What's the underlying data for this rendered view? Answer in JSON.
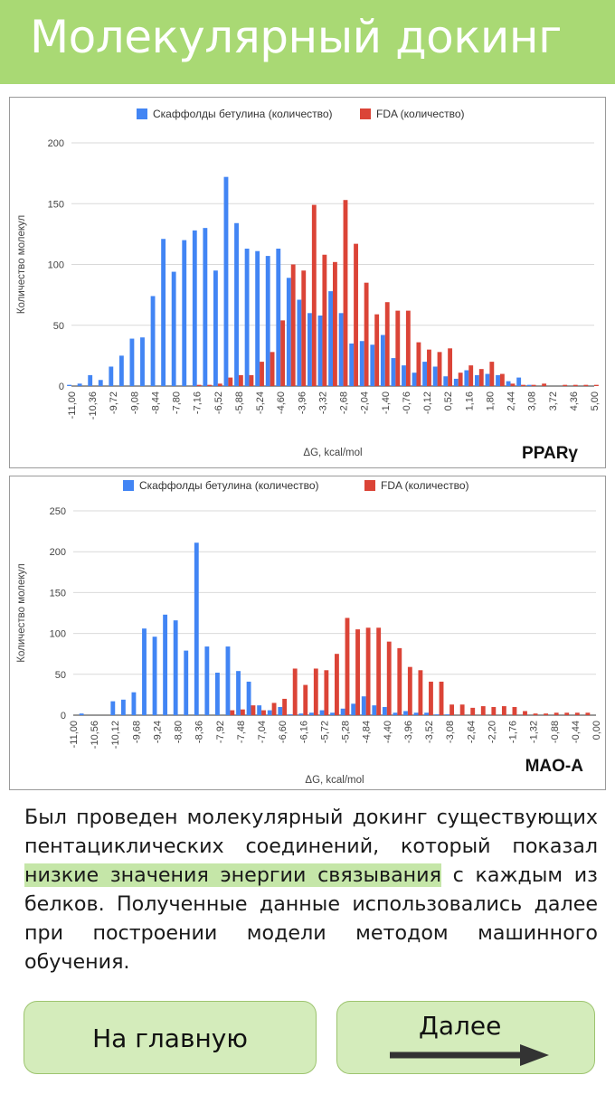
{
  "header": {
    "title": "Молекулярный докинг"
  },
  "colors": {
    "scaffold": "#4285f4",
    "fda": "#db4437",
    "header_bg": "#a9d974",
    "button_bg": "#d4ecbb",
    "highlight": "#c5e6a8"
  },
  "chart_data": [
    {
      "type": "bar",
      "title": "",
      "corner_label": "PPARγ",
      "xlabel": "ΔG, kcal/mol",
      "ylabel": "Количество  молекул",
      "ylim": [
        0,
        200
      ],
      "yticks": [
        "0",
        "50",
        "100",
        "150",
        "200"
      ],
      "legend_position": "top",
      "grid": true,
      "xtick_labels": [
        "-11,00",
        "-10,36",
        "-9,72",
        "-9,08",
        "-8,44",
        "-7,80",
        "-7,16",
        "-6,52",
        "-5,88",
        "-5,24",
        "-4,60",
        "-3,96",
        "-3,32",
        "-2,68",
        "-2,04",
        "-1,40",
        "-0,76",
        "-0,12",
        "0,52",
        "1,16",
        "1,80",
        "2,44",
        "3,08",
        "3,72",
        "4,36",
        "5,00"
      ],
      "x": [
        -11.0,
        -10.68,
        -10.36,
        -10.04,
        -9.72,
        -9.4,
        -9.08,
        -8.76,
        -8.44,
        -8.12,
        -7.8,
        -7.48,
        -7.16,
        -6.84,
        -6.52,
        -6.2,
        -5.88,
        -5.56,
        -5.24,
        -4.92,
        -4.6,
        -4.28,
        -3.96,
        -3.64,
        -3.32,
        -3.0,
        -2.68,
        -2.36,
        -2.04,
        -1.72,
        -1.4,
        -1.08,
        -0.76,
        -0.44,
        -0.12,
        0.2,
        0.52,
        0.84,
        1.16,
        1.48,
        1.8,
        2.12,
        2.44,
        2.76,
        3.08,
        3.4,
        3.72,
        4.04,
        4.36,
        4.68,
        5.0
      ],
      "series": [
        {
          "name": "Скаффолды бетулина (количество)",
          "values": [
            1,
            2,
            9,
            5,
            16,
            25,
            39,
            40,
            74,
            121,
            94,
            120,
            128,
            130,
            95,
            172,
            134,
            113,
            111,
            107,
            113,
            89,
            71,
            60,
            58,
            78,
            60,
            35,
            37,
            34,
            42,
            23,
            17,
            11,
            20,
            16,
            8,
            6,
            13,
            9,
            10,
            9,
            4,
            7,
            1,
            0,
            0,
            0,
            0,
            0,
            0
          ]
        },
        {
          "name": "FDA (количество)",
          "values": [
            0,
            0,
            0,
            0,
            0,
            0,
            0,
            0,
            0,
            0,
            0,
            0,
            1,
            1,
            2,
            7,
            9,
            9,
            20,
            28,
            54,
            100,
            95,
            149,
            108,
            102,
            153,
            117,
            85,
            59,
            69,
            62,
            62,
            36,
            30,
            28,
            31,
            11,
            17,
            14,
            20,
            10,
            2,
            1,
            1,
            2,
            0,
            1,
            1,
            1,
            1
          ]
        }
      ]
    },
    {
      "type": "bar",
      "title": "",
      "corner_label": "MAO-A",
      "xlabel": "ΔG, kcal/mol",
      "ylabel": "Количество  молекул",
      "ylim": [
        0,
        250
      ],
      "yticks": [
        "0",
        "50",
        "100",
        "150",
        "200",
        "250"
      ],
      "legend_position": "top",
      "grid": true,
      "xtick_labels": [
        "-11,00",
        "-10,56",
        "-10,12",
        "-9,68",
        "-9,24",
        "-8,80",
        "-8,36",
        "-7,92",
        "-7,48",
        "-7,04",
        "-6,60",
        "-6,16",
        "-5,72",
        "-5,28",
        "-4,84",
        "-4,40",
        "-3,96",
        "-3,52",
        "-3,08",
        "-2,64",
        "-2,20",
        "-1,76",
        "-1,32",
        "-0,88",
        "-0,44",
        "0,00"
      ],
      "x": [
        -11.0,
        -10.78,
        -10.56,
        -10.34,
        -10.12,
        -9.9,
        -9.68,
        -9.46,
        -9.24,
        -9.02,
        -8.8,
        -8.58,
        -8.36,
        -8.14,
        -7.92,
        -7.7,
        -7.48,
        -7.26,
        -7.04,
        -6.82,
        -6.6,
        -6.38,
        -6.16,
        -5.94,
        -5.72,
        -5.5,
        -5.28,
        -5.06,
        -4.84,
        -4.62,
        -4.4,
        -4.18,
        -3.96,
        -3.74,
        -3.52,
        -3.3,
        -3.08,
        -2.86,
        -2.64,
        -2.42,
        -2.2,
        -1.98,
        -1.76,
        -1.54,
        -1.32,
        -1.1,
        -0.88,
        -0.66,
        -0.44,
        -0.22,
        0.0
      ],
      "series": [
        {
          "name": "Скаффолды бетулина (количество)",
          "values": [
            0,
            2,
            0,
            0,
            17,
            19,
            28,
            106,
            96,
            123,
            116,
            79,
            211,
            84,
            52,
            84,
            54,
            41,
            12,
            6,
            10,
            1,
            2,
            3,
            6,
            3,
            8,
            14,
            23,
            12,
            10,
            3,
            5,
            3,
            3,
            1,
            1,
            0,
            0,
            0,
            0,
            0,
            0,
            0,
            0,
            0,
            0,
            0,
            0,
            0,
            0
          ]
        },
        {
          "name": "FDA (количество)",
          "values": [
            0,
            0,
            0,
            0,
            0,
            0,
            0,
            0,
            0,
            0,
            0,
            0,
            0,
            0,
            0,
            6,
            7,
            12,
            6,
            15,
            20,
            57,
            37,
            57,
            55,
            75,
            119,
            105,
            107,
            107,
            90,
            82,
            59,
            55,
            41,
            41,
            13,
            13,
            9,
            11,
            10,
            11,
            10,
            5,
            2,
            2,
            3,
            3,
            3,
            3,
            0
          ]
        }
      ]
    }
  ],
  "paragraph": {
    "text_before": "Был проведен молекулярный докинг существующих пентациклических соединений, который показал ",
    "highlight": "низкие значения энергии связывания",
    "text_after": " с каждым из белков. Полученные данные использовались далее при построении модели методом машинного обучения."
  },
  "buttons": {
    "home_label": "На главную",
    "next_label": "Далее",
    "next_icon": "arrow-right-icon"
  }
}
